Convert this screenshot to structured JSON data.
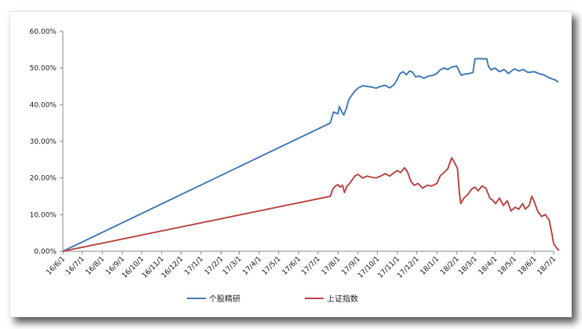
{
  "chart_data": {
    "type": "line",
    "title": "",
    "xlabel": "",
    "ylabel": "",
    "ylim": [
      0,
      60
    ],
    "y_ticks": [
      "0.00%",
      "10.00%",
      "20.00%",
      "30.00%",
      "40.00%",
      "50.00%",
      "60.00%"
    ],
    "x_ticks": [
      "16/6/1",
      "16/7/1",
      "16/8/1",
      "16/9/1",
      "16/10/1",
      "16/11/1",
      "16/12/1",
      "17/1/1",
      "17/2/1",
      "17/3/1",
      "17/4/1",
      "17/5/1",
      "17/6/1",
      "17/7/1",
      "17/8/1",
      "17/9/1",
      "17/10/1",
      "17/11/1",
      "17/12/1",
      "18/1/1",
      "18/2/1",
      "18/3/1",
      "18/4/1",
      "18/5/1",
      "18/6/1",
      "18/7/1"
    ],
    "grid": false,
    "legend_position": "bottom",
    "series": [
      {
        "name": "个股精研",
        "color": "#4a7ebb",
        "points": [
          [
            "16/6/1",
            0.0
          ],
          [
            "17/7/20",
            35.0
          ],
          [
            "17/7/25",
            38.0
          ],
          [
            "17/8/1",
            37.5
          ],
          [
            "17/8/3",
            39.5
          ],
          [
            "17/8/7",
            38.0
          ],
          [
            "17/8/10",
            37.2
          ],
          [
            "17/8/14",
            39.0
          ],
          [
            "17/8/18",
            41.5
          ],
          [
            "17/8/22",
            42.5
          ],
          [
            "17/8/26",
            43.5
          ],
          [
            "17/9/1",
            44.5
          ],
          [
            "17/9/8",
            45.2
          ],
          [
            "17/9/15",
            45.0
          ],
          [
            "17/9/22",
            44.8
          ],
          [
            "17/9/29",
            44.5
          ],
          [
            "17/10/6",
            45.0
          ],
          [
            "17/10/13",
            45.3
          ],
          [
            "17/10/20",
            44.6
          ],
          [
            "17/10/27",
            45.5
          ],
          [
            "17/11/1",
            47.0
          ],
          [
            "17/11/5",
            48.5
          ],
          [
            "17/11/10",
            49.0
          ],
          [
            "17/11/15",
            48.2
          ],
          [
            "17/11/20",
            49.2
          ],
          [
            "17/11/25",
            48.8
          ],
          [
            "17/11/29",
            47.6
          ],
          [
            "17/12/5",
            47.8
          ],
          [
            "17/12/12",
            47.2
          ],
          [
            "17/12/19",
            47.8
          ],
          [
            "17/12/26",
            48.0
          ],
          [
            "18/1/1",
            48.5
          ],
          [
            "18/1/6",
            49.5
          ],
          [
            "18/1/12",
            50.0
          ],
          [
            "18/1/18",
            49.6
          ],
          [
            "18/1/24",
            50.3
          ],
          [
            "18/2/1",
            50.5
          ],
          [
            "18/2/5",
            49.0
          ],
          [
            "18/2/8",
            48.0
          ],
          [
            "18/2/12",
            48.3
          ],
          [
            "18/2/20",
            48.5
          ],
          [
            "18/2/26",
            48.8
          ],
          [
            "18/3/1",
            52.5
          ],
          [
            "18/3/8",
            52.6
          ],
          [
            "18/3/15",
            52.5
          ],
          [
            "18/3/19",
            52.6
          ],
          [
            "18/3/22",
            50.5
          ],
          [
            "18/3/26",
            49.5
          ],
          [
            "18/4/1",
            50.0
          ],
          [
            "18/4/8",
            49.0
          ],
          [
            "18/4/15",
            49.6
          ],
          [
            "18/4/22",
            48.5
          ],
          [
            "18/5/1",
            49.8
          ],
          [
            "18/5/8",
            49.2
          ],
          [
            "18/5/15",
            49.6
          ],
          [
            "18/5/22",
            48.8
          ],
          [
            "18/6/1",
            49.0
          ],
          [
            "18/6/8",
            48.5
          ],
          [
            "18/6/15",
            48.2
          ],
          [
            "18/6/22",
            47.5
          ],
          [
            "18/6/29",
            47.0
          ],
          [
            "18/7/3",
            46.8
          ],
          [
            "18/7/8",
            46.2
          ]
        ]
      },
      {
        "name": "上证指数",
        "color": "#be4b48",
        "points": [
          [
            "16/6/1",
            0.0
          ],
          [
            "17/7/20",
            15.0
          ],
          [
            "17/7/24",
            17.0
          ],
          [
            "17/7/28",
            17.8
          ],
          [
            "17/8/1",
            18.2
          ],
          [
            "17/8/4",
            17.5
          ],
          [
            "17/8/8",
            18.0
          ],
          [
            "17/8/11",
            16.0
          ],
          [
            "17/8/15",
            17.8
          ],
          [
            "17/8/19",
            18.5
          ],
          [
            "17/8/23",
            19.5
          ],
          [
            "17/8/27",
            20.5
          ],
          [
            "17/9/1",
            21.0
          ],
          [
            "17/9/8",
            20.0
          ],
          [
            "17/9/15",
            20.5
          ],
          [
            "17/9/22",
            20.2
          ],
          [
            "17/9/29",
            20.0
          ],
          [
            "17/10/6",
            20.5
          ],
          [
            "17/10/13",
            21.2
          ],
          [
            "17/10/20",
            20.5
          ],
          [
            "17/10/27",
            21.5
          ],
          [
            "17/11/1",
            22.0
          ],
          [
            "17/11/6",
            21.5
          ],
          [
            "17/11/12",
            22.8
          ],
          [
            "17/11/17",
            21.5
          ],
          [
            "17/11/22",
            19.0
          ],
          [
            "17/11/27",
            18.0
          ],
          [
            "17/12/3",
            18.5
          ],
          [
            "17/12/10",
            17.2
          ],
          [
            "17/12/17",
            18.0
          ],
          [
            "17/12/24",
            17.8
          ],
          [
            "18/1/1",
            18.5
          ],
          [
            "18/1/6",
            20.5
          ],
          [
            "18/1/12",
            21.5
          ],
          [
            "18/1/18",
            22.5
          ],
          [
            "18/1/24",
            25.5
          ],
          [
            "18/1/29",
            24.0
          ],
          [
            "18/2/2",
            22.5
          ],
          [
            "18/2/5",
            16.0
          ],
          [
            "18/2/7",
            13.0
          ],
          [
            "18/2/12",
            14.5
          ],
          [
            "18/2/18",
            15.5
          ],
          [
            "18/2/24",
            17.0
          ],
          [
            "18/3/1",
            17.5
          ],
          [
            "18/3/6",
            16.5
          ],
          [
            "18/3/12",
            17.8
          ],
          [
            "18/3/18",
            17.2
          ],
          [
            "18/3/24",
            14.5
          ],
          [
            "18/3/28",
            14.0
          ],
          [
            "18/4/2",
            13.0
          ],
          [
            "18/4/8",
            14.5
          ],
          [
            "18/4/14",
            12.5
          ],
          [
            "18/4/20",
            13.8
          ],
          [
            "18/4/26",
            11.0
          ],
          [
            "18/5/2",
            12.0
          ],
          [
            "18/5/8",
            11.5
          ],
          [
            "18/5/14",
            13.0
          ],
          [
            "18/5/18",
            11.5
          ],
          [
            "18/5/24",
            12.5
          ],
          [
            "18/5/28",
            15.0
          ],
          [
            "18/6/1",
            13.5
          ],
          [
            "18/6/6",
            11.0
          ],
          [
            "18/6/12",
            9.5
          ],
          [
            "18/6/18",
            10.0
          ],
          [
            "18/6/24",
            8.5
          ],
          [
            "18/6/28",
            5.0
          ],
          [
            "18/7/1",
            2.0
          ],
          [
            "18/7/5",
            1.0
          ],
          [
            "18/7/9",
            0.2
          ]
        ]
      }
    ]
  }
}
